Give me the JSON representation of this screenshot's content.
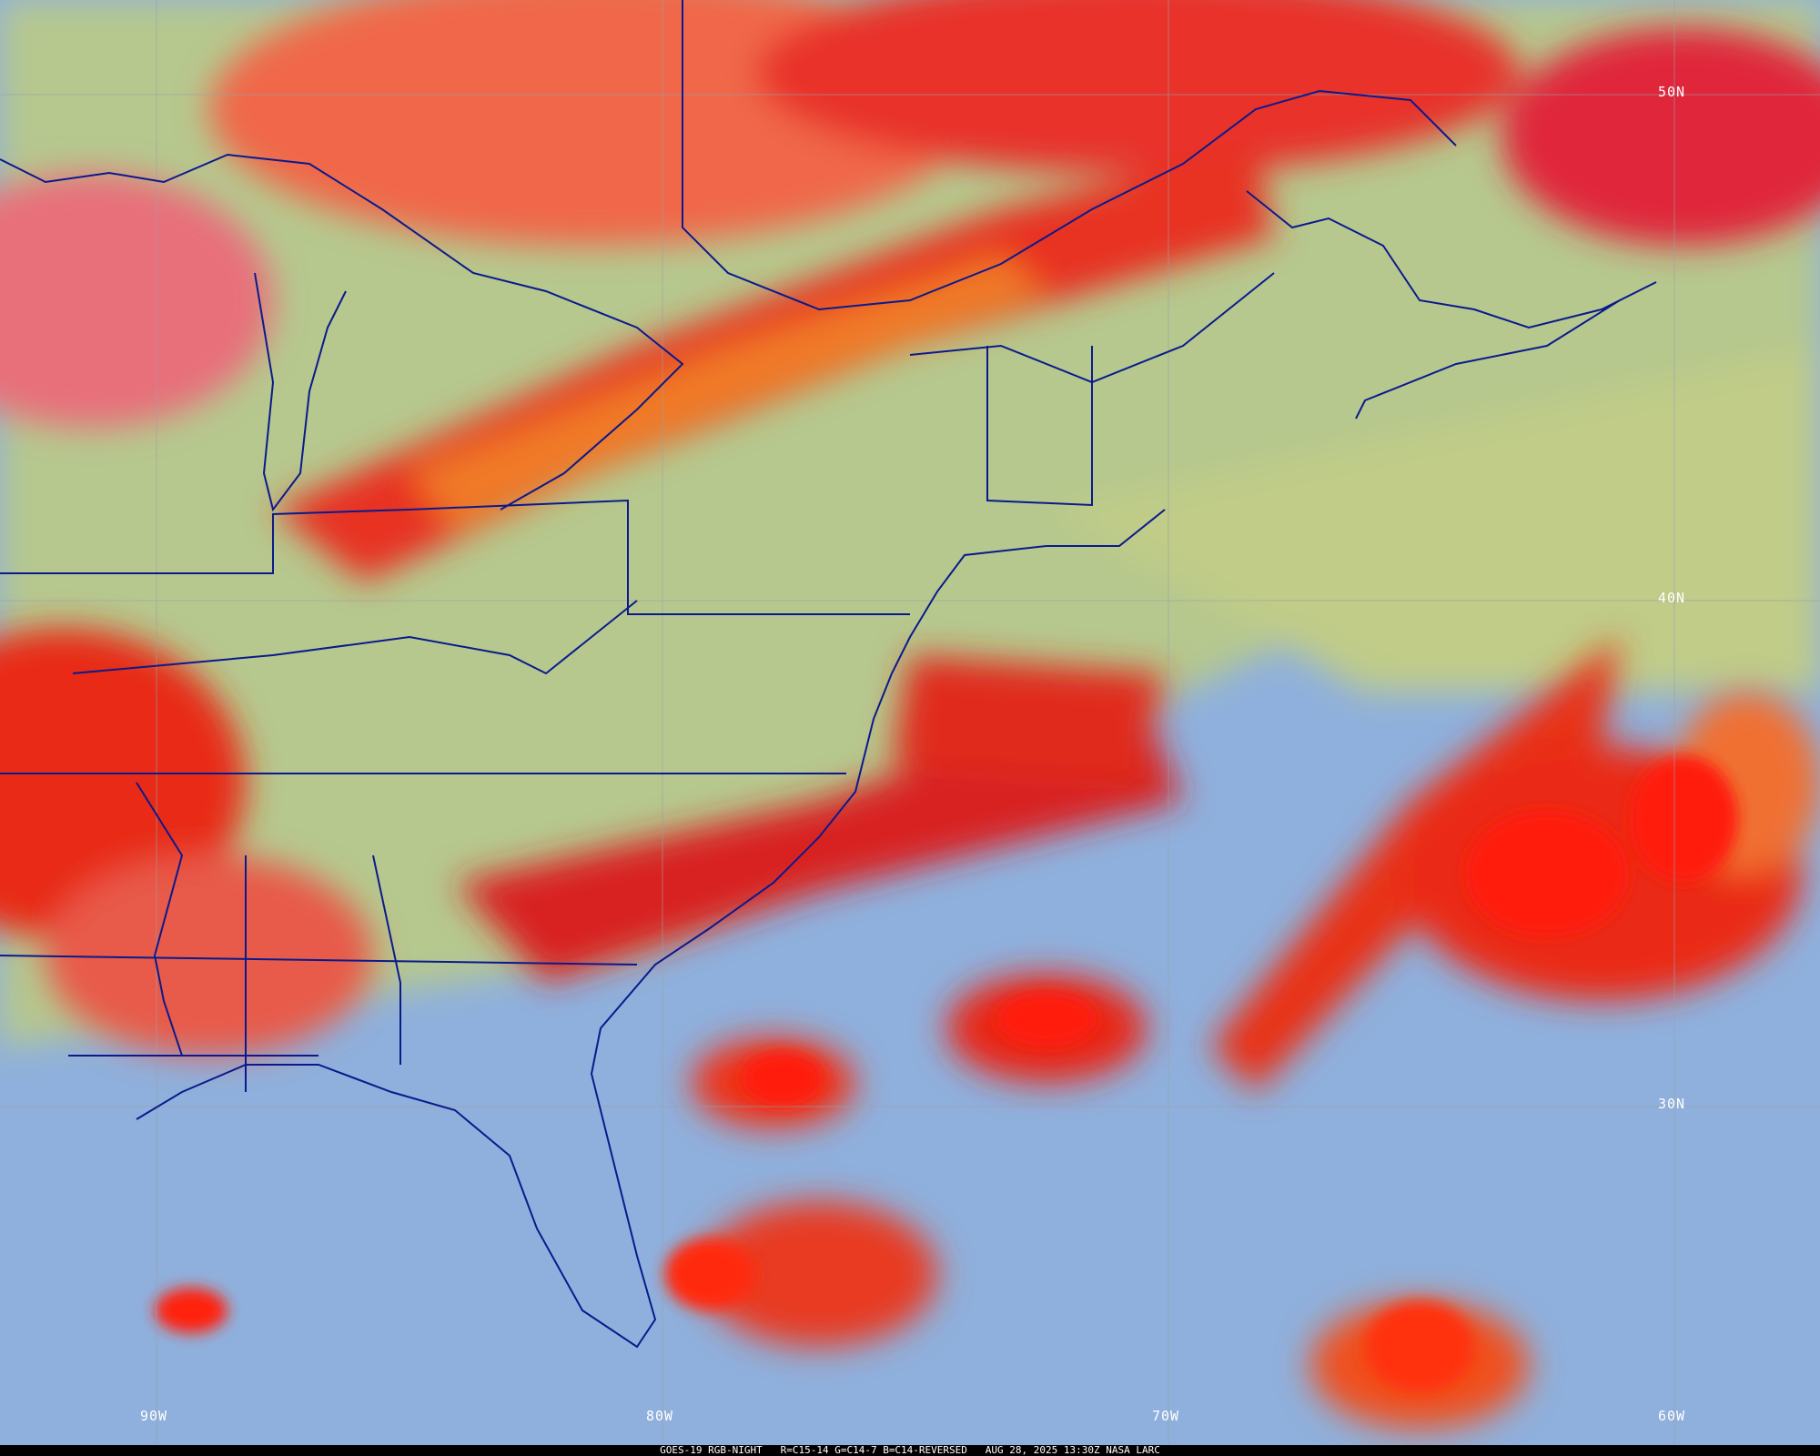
{
  "caption": "GOES-19 RGB-NIGHT   R=C15-14 G=C14-7 B=C14-REVERSED   AUG 28, 2025 13:30Z NASA LARC",
  "lat_labels": [
    "50N",
    "40N",
    "30N"
  ],
  "lon_labels": [
    "90W",
    "80W",
    "70W",
    "60W"
  ],
  "colors": {
    "clear_ocean": "#8fb0dc",
    "clear_land": "#b8c890",
    "high_cloud": "#e8201c",
    "mid_cloud": "#f08030",
    "borders": "#0a1a8c",
    "gridlines": "#9aa0a8"
  }
}
